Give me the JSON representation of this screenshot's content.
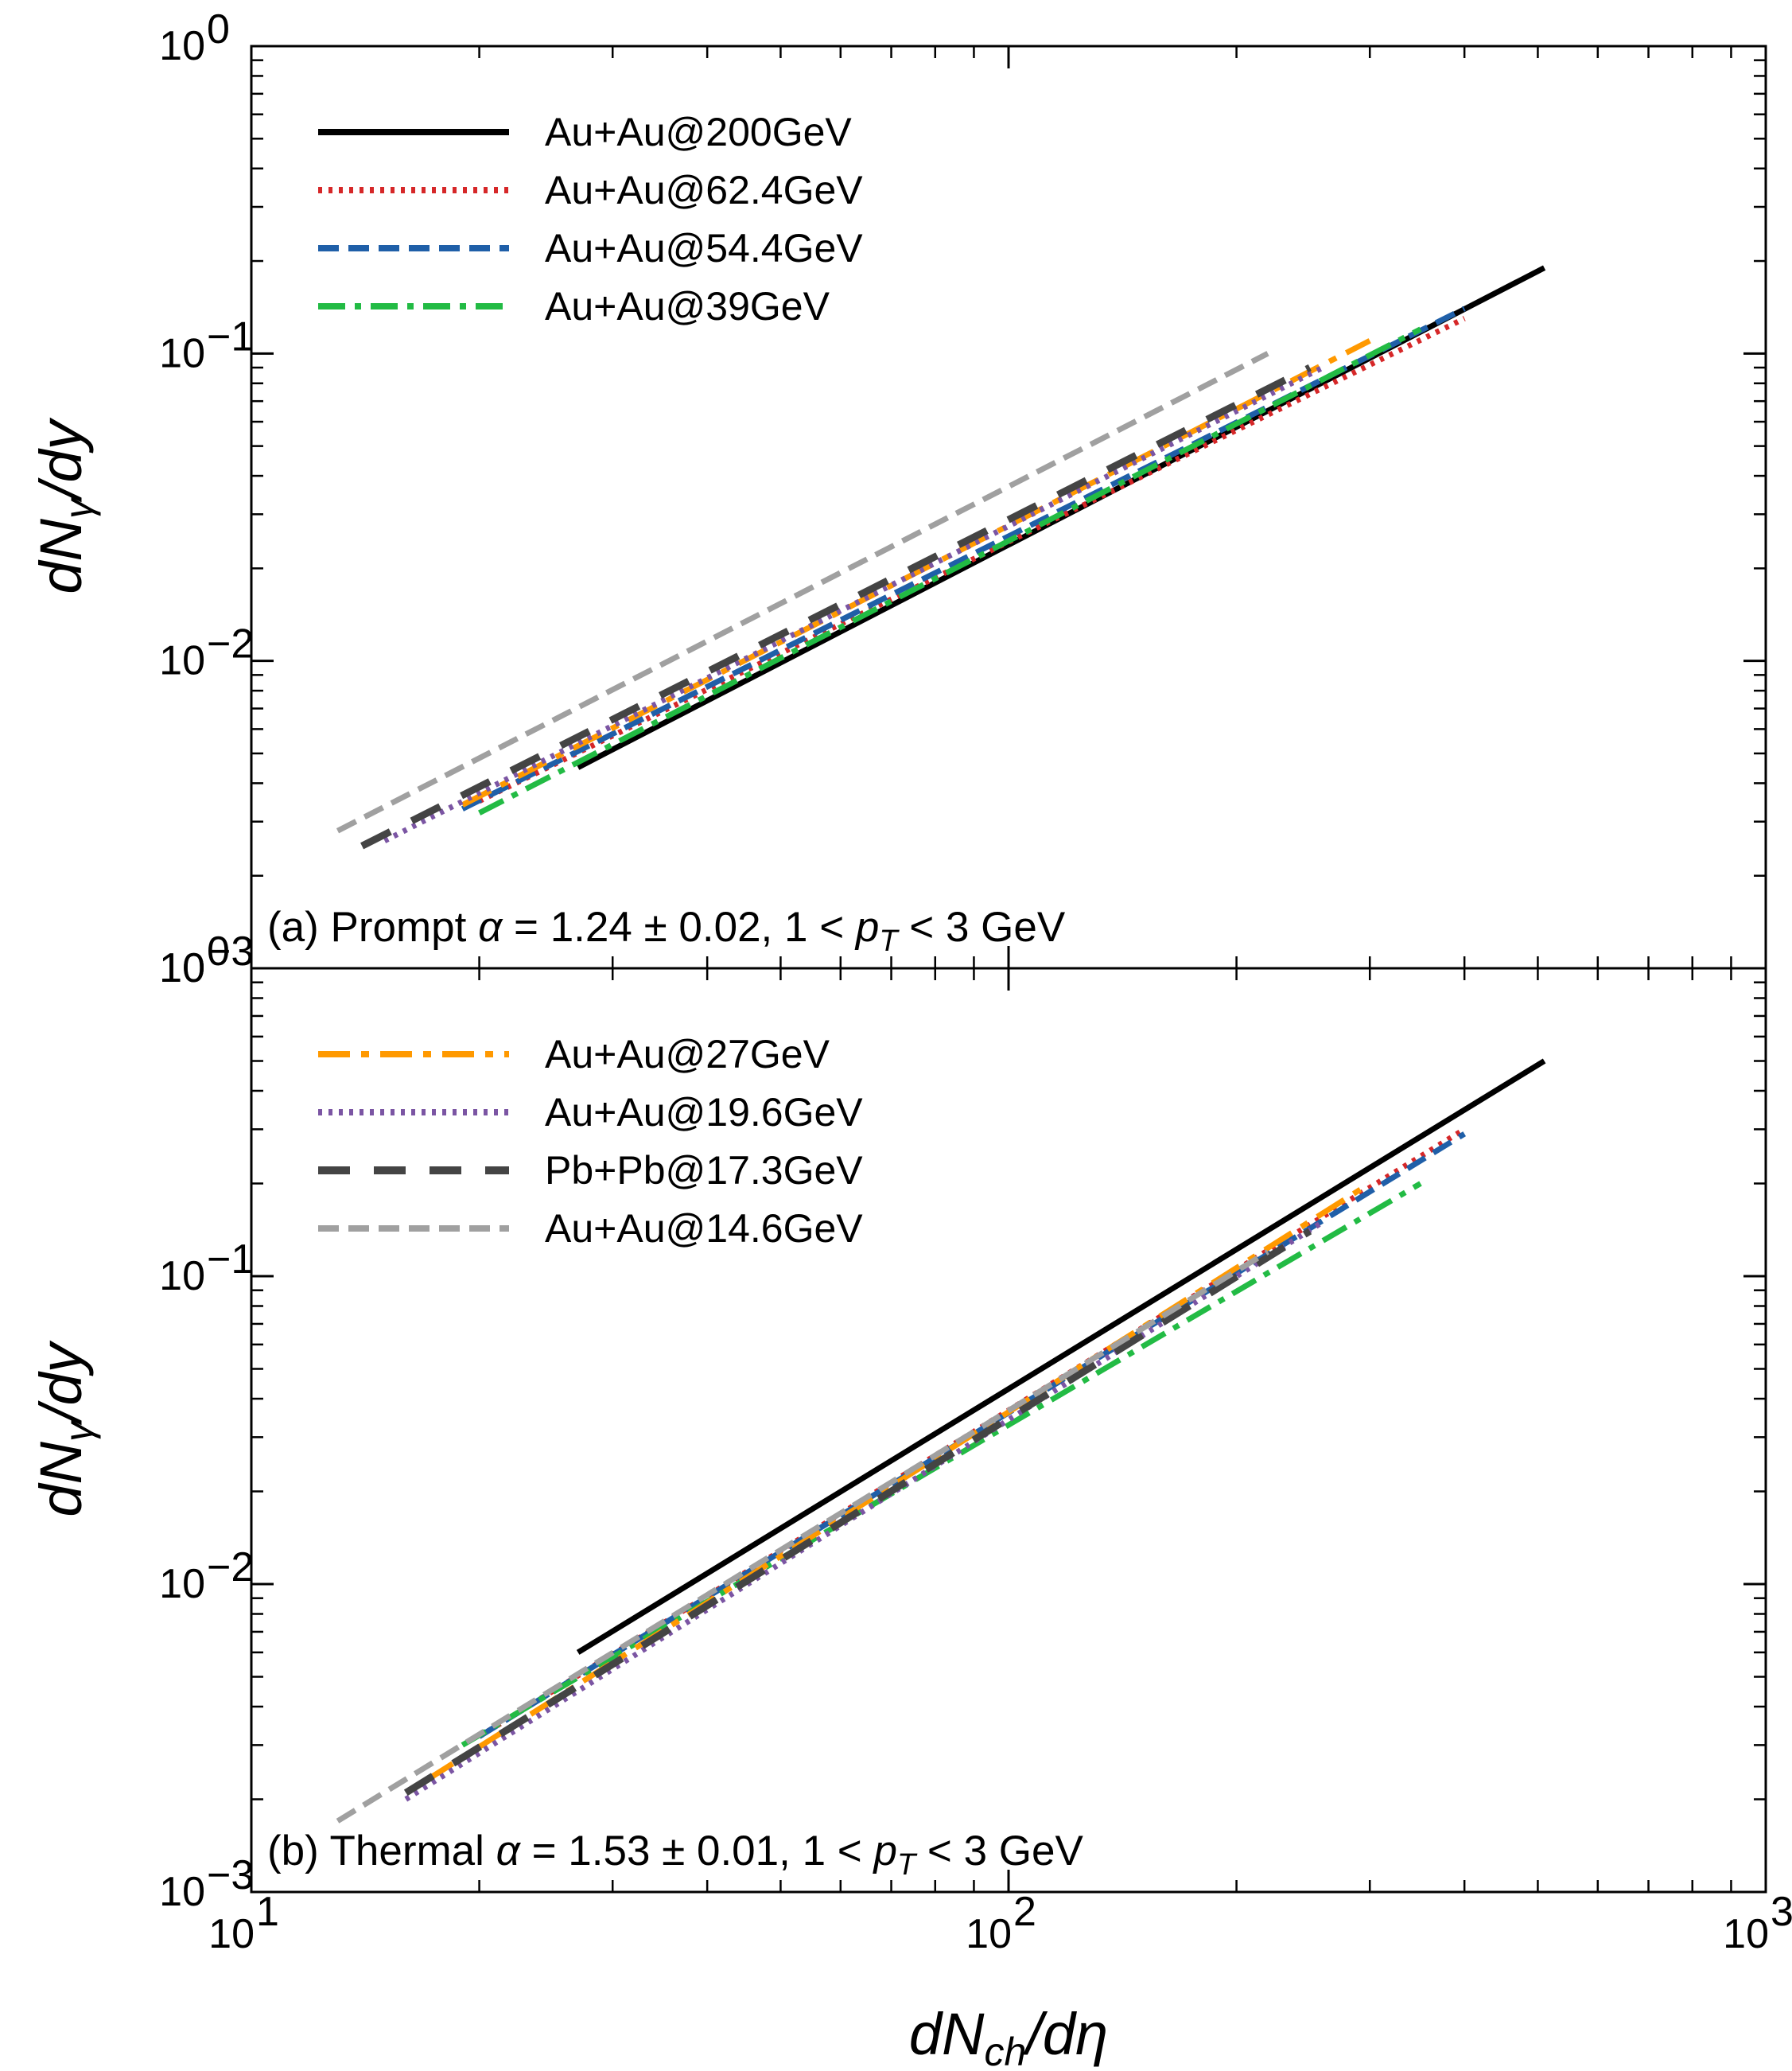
{
  "chart_data": [
    {
      "type": "line",
      "panel": "a",
      "annotation": {
        "label": "(a) Prompt",
        "alpha_symbol": "α",
        "alpha_text": " = 1.24 ± 0.02,  1 < ",
        "pt_symbol": "p",
        "pt_sub": "T",
        "range_text": " < 3 GeV"
      },
      "xlabel": "dN_ch/dη",
      "ylabel": "dN_γ/dy",
      "xscale": "log",
      "yscale": "log",
      "xlim": [
        10,
        1000
      ],
      "ylim": [
        0.001,
        1
      ],
      "legend_position": "top-left",
      "legend": [
        "Au+Au@200GeV",
        "Au+Au@62.4GeV",
        "Au+Au@54.4GeV",
        "Au+Au@39GeV"
      ],
      "series": [
        {
          "name": "Au+Au@200GeV",
          "color": "#000000",
          "style": "solid",
          "x": [
            27,
            510
          ],
          "y": [
            0.0045,
            0.19
          ]
        },
        {
          "name": "Au+Au@62.4GeV",
          "color": "#d62728",
          "style": "dotted",
          "x": [
            20,
            400
          ],
          "y": [
            0.0035,
            0.13
          ]
        },
        {
          "name": "Au+Au@54.4GeV",
          "color": "#1f5fa8",
          "style": "dashed",
          "x": [
            19,
            400
          ],
          "y": [
            0.0033,
            0.14
          ]
        },
        {
          "name": "Au+Au@39GeV",
          "color": "#22bb44",
          "style": "dashdot",
          "x": [
            20,
            350
          ],
          "y": [
            0.0032,
            0.12
          ]
        },
        {
          "name": "Au+Au@27GeV",
          "color": "#ff9900",
          "style": "longdashdot",
          "x": [
            19,
            300
          ],
          "y": [
            0.0034,
            0.11
          ]
        },
        {
          "name": "Au+Au@19.6GeV",
          "color": "#7b55a3",
          "style": "dotted",
          "x": [
            15,
            260
          ],
          "y": [
            0.0026,
            0.09
          ]
        },
        {
          "name": "Pb+Pb@17.3GeV",
          "color": "#444444",
          "style": "longdash",
          "x": [
            14,
            250
          ],
          "y": [
            0.0025,
            0.09
          ]
        },
        {
          "name": "Au+Au@14.6GeV",
          "color": "#a0a0a0",
          "style": "dashed",
          "x": [
            13,
            220
          ],
          "y": [
            0.0028,
            0.1
          ]
        }
      ]
    },
    {
      "type": "line",
      "panel": "b",
      "annotation": {
        "label": "(b) Thermal",
        "alpha_symbol": "α",
        "alpha_text": " = 1.53 ± 0.01,  1 < ",
        "pt_symbol": "p",
        "pt_sub": "T",
        "range_text": " < 3 GeV"
      },
      "xlabel": "dN_ch/dη",
      "ylabel": "dN_γ/dy",
      "xscale": "log",
      "yscale": "log",
      "xlim": [
        10,
        1000
      ],
      "ylim": [
        0.001,
        1
      ],
      "legend_position": "top-left",
      "legend": [
        "Au+Au@27GeV",
        "Au+Au@19.6GeV",
        "Pb+Pb@17.3GeV",
        "Au+Au@14.6GeV"
      ],
      "series": [
        {
          "name": "Au+Au@200GeV",
          "color": "#000000",
          "style": "solid",
          "x": [
            27,
            510
          ],
          "y": [
            0.006,
            0.5
          ]
        },
        {
          "name": "Au+Au@62.4GeV",
          "color": "#d62728",
          "style": "dotted",
          "x": [
            20,
            400
          ],
          "y": [
            0.0032,
            0.3
          ]
        },
        {
          "name": "Au+Au@54.4GeV",
          "color": "#1f5fa8",
          "style": "dashed",
          "x": [
            20,
            400
          ],
          "y": [
            0.0032,
            0.29
          ]
        },
        {
          "name": "Au+Au@39GeV",
          "color": "#22bb44",
          "style": "dashdot",
          "x": [
            19,
            350
          ],
          "y": [
            0.003,
            0.2
          ]
        },
        {
          "name": "Au+Au@27GeV",
          "color": "#ff9900",
          "style": "longdashdot",
          "x": [
            17,
            300
          ],
          "y": [
            0.0023,
            0.2
          ]
        },
        {
          "name": "Au+Au@19.6GeV",
          "color": "#7b55a3",
          "style": "dotted",
          "x": [
            16,
            260
          ],
          "y": [
            0.002,
            0.15
          ]
        },
        {
          "name": "Pb+Pb@17.3GeV",
          "color": "#444444",
          "style": "longdash",
          "x": [
            16,
            250
          ],
          "y": [
            0.0021,
            0.14
          ]
        },
        {
          "name": "Au+Au@14.6GeV",
          "color": "#a0a0a0",
          "style": "dashed",
          "x": [
            13,
            220
          ],
          "y": [
            0.0017,
            0.12
          ]
        }
      ]
    }
  ],
  "xlabel_parts": {
    "d": "d",
    "N": "N",
    "sub": "ch",
    "over": "/d",
    "var": "η"
  },
  "ylabel_parts": {
    "d": "d",
    "N": "N",
    "sub": "γ",
    "over": "/dy"
  }
}
